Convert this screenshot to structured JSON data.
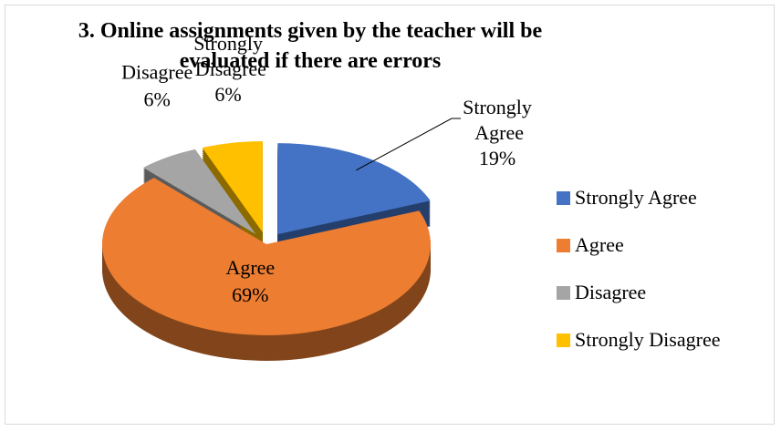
{
  "chart_data": {
    "type": "pie3d",
    "title": "3. Online assignments given by the teacher will be evaluated if there are errors",
    "categories": [
      "Strongly Agree",
      "Agree",
      "Disagree",
      "Strongly Disagree"
    ],
    "values": [
      19,
      69,
      6,
      6
    ],
    "value_labels": [
      "19%",
      "69%",
      "6%",
      "6%"
    ],
    "colors": [
      "#4472c4",
      "#ed7d31",
      "#a5a5a5",
      "#ffc000"
    ],
    "legend": "right"
  }
}
